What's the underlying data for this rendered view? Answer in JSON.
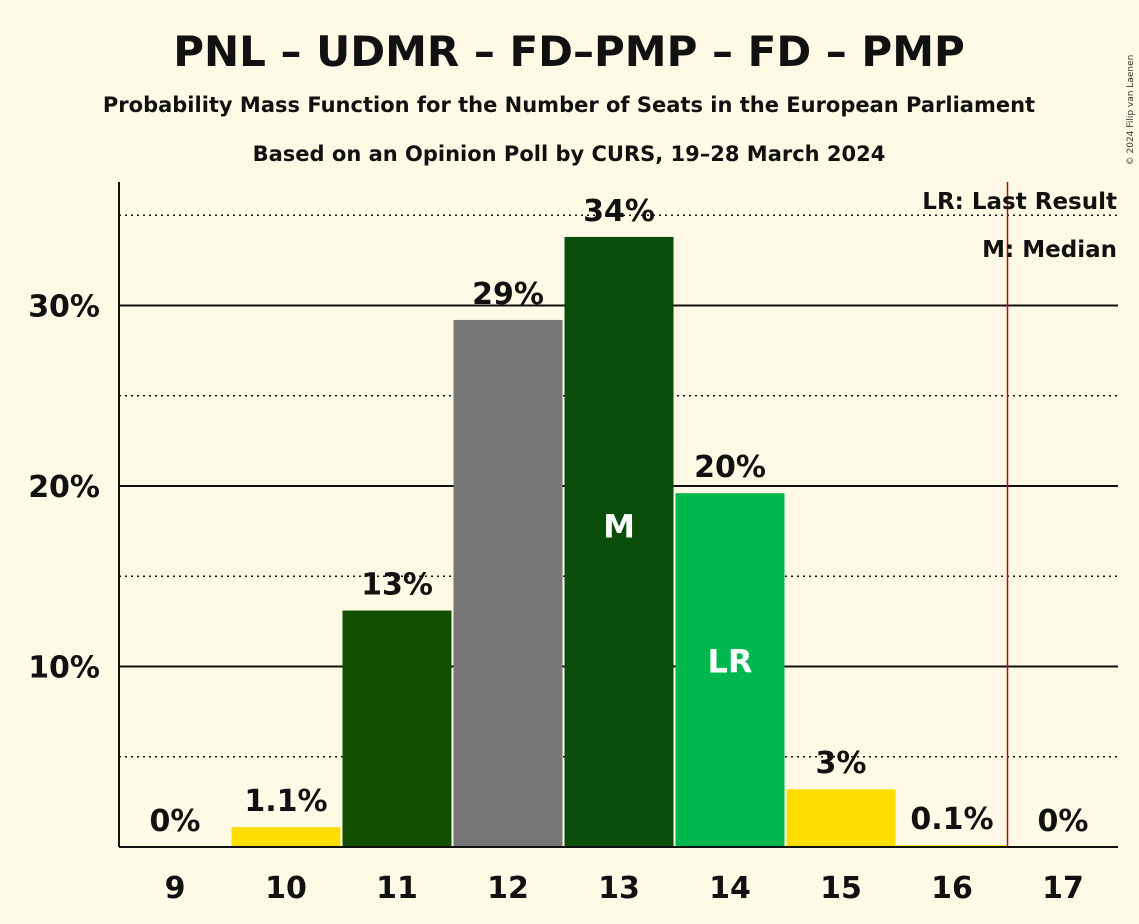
{
  "chart_data": {
    "type": "bar",
    "title": "PNL – UDMR – FD–PMP – FD – PMP",
    "subtitle": "Probability Mass Function for the Number of Seats in the European Parliament",
    "subtitle2": "Based on an Opinion Poll by CURS, 19–28 March 2024",
    "copyright": "© 2024 Filip van Laenen",
    "categories": [
      "9",
      "10",
      "11",
      "12",
      "13",
      "14",
      "15",
      "16",
      "17"
    ],
    "values": [
      0,
      1.1,
      13.1,
      29.2,
      33.8,
      19.6,
      3.2,
      0.1,
      0
    ],
    "data_labels": [
      "0%",
      "1.1%",
      "13%",
      "29%",
      "34%",
      "20%",
      "3%",
      "0.1%",
      "0%"
    ],
    "bar_colors": [
      "#ffdf00",
      "#ffdf00",
      "#124f00",
      "#777777",
      "#0b4d0b",
      "#00b84d",
      "#ffdf00",
      "#ffdf00",
      "#ffdf00"
    ],
    "inner_labels": [
      "",
      "",
      "",
      "",
      "M",
      "LR",
      "",
      "",
      ""
    ],
    "ylim": [
      0,
      37
    ],
    "yticks": [
      10,
      20,
      30
    ],
    "ytick_labels": [
      "10%",
      "20%",
      "30%"
    ],
    "minor_gridlines": [
      5,
      15,
      25,
      35
    ],
    "last_result_line": 16.5,
    "last_result_color": "#cc0000",
    "legend": [
      "LR: Last Result",
      "M: Median"
    ],
    "legend_position": "top-right",
    "grid": true
  }
}
